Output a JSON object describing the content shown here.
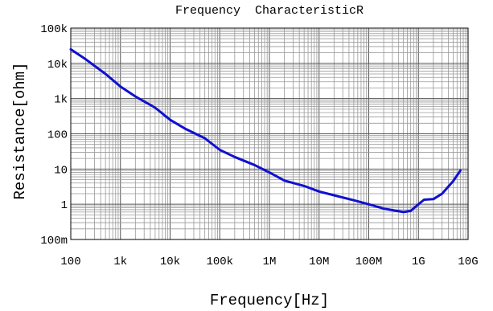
{
  "chart_data": {
    "type": "line",
    "title": "Frequency  CharacteristicR",
    "xlabel": "Frequency[Hz]",
    "ylabel": "Resistance[ohm]",
    "x_scale": "log",
    "y_scale": "log",
    "xlim": [
      100,
      10000000000
    ],
    "ylim": [
      0.1,
      100000
    ],
    "grid": true,
    "line_color": "#1010d0",
    "x_ticks": [
      {
        "value": 100,
        "label": "100"
      },
      {
        "value": 1000,
        "label": "1k"
      },
      {
        "value": 10000,
        "label": "10k"
      },
      {
        "value": 100000,
        "label": "100k"
      },
      {
        "value": 1000000,
        "label": "1M"
      },
      {
        "value": 10000000,
        "label": "10M"
      },
      {
        "value": 100000000,
        "label": "100M"
      },
      {
        "value": 1000000000,
        "label": "1G"
      },
      {
        "value": 10000000000,
        "label": "10G"
      }
    ],
    "y_ticks": [
      {
        "value": 0.1,
        "label": "100m"
      },
      {
        "value": 1,
        "label": "1"
      },
      {
        "value": 10,
        "label": "10"
      },
      {
        "value": 100,
        "label": "100"
      },
      {
        "value": 1000,
        "label": "1k"
      },
      {
        "value": 10000,
        "label": "10k"
      },
      {
        "value": 100000,
        "label": "100k"
      }
    ],
    "series": [
      {
        "points": [
          [
            100,
            25000
          ],
          [
            200,
            13000
          ],
          [
            500,
            5000
          ],
          [
            1000,
            2200
          ],
          [
            2000,
            1150
          ],
          [
            5000,
            550
          ],
          [
            10000,
            250
          ],
          [
            20000,
            140
          ],
          [
            50000,
            75
          ],
          [
            100000,
            35
          ],
          [
            200000,
            22
          ],
          [
            500000,
            13
          ],
          [
            1000000,
            8
          ],
          [
            2000000,
            4.7
          ],
          [
            5000000,
            3.3
          ],
          [
            10000000,
            2.3
          ],
          [
            20000000,
            1.8
          ],
          [
            50000000,
            1.3
          ],
          [
            100000000,
            1.0
          ],
          [
            200000000,
            0.75
          ],
          [
            500000000,
            0.6
          ],
          [
            700000000,
            0.65
          ],
          [
            1000000000,
            1.0
          ],
          [
            1300000000,
            1.35
          ],
          [
            2000000000,
            1.4
          ],
          [
            3000000000,
            2.0
          ],
          [
            5000000000,
            4.5
          ],
          [
            7000000000,
            9
          ]
        ]
      }
    ]
  }
}
